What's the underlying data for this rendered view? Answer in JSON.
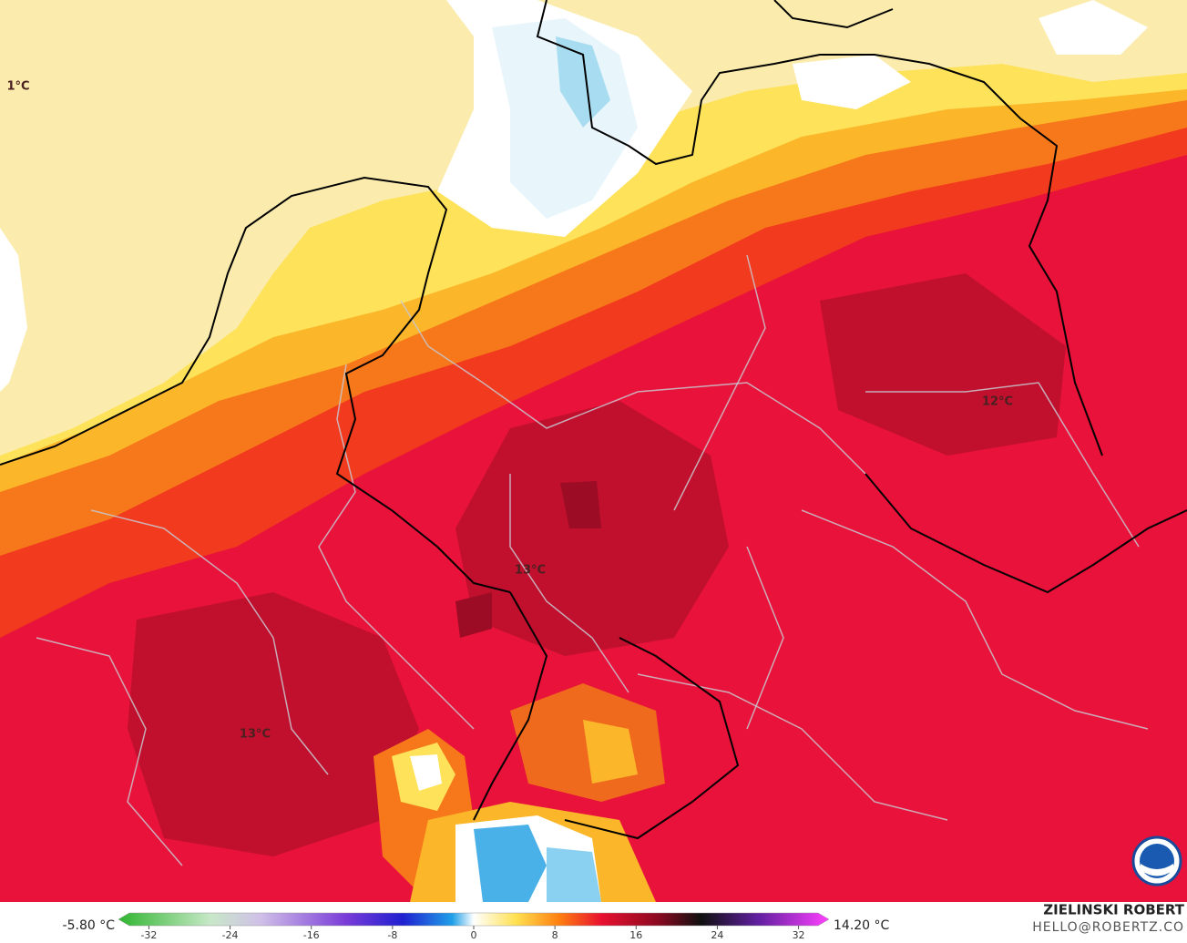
{
  "map": {
    "labels": [
      "1°C",
      "12°C",
      "13°C",
      "13°C"
    ],
    "colorbar": {
      "min_label": "-5.80 °C",
      "max_label": "14.20 °C",
      "range": [
        -35,
        35
      ],
      "ticks": [
        -32,
        -24,
        -16,
        -8,
        0,
        8,
        16,
        24,
        32
      ]
    },
    "credit": {
      "name": "ZIELINSKI ROBERT",
      "contact": "HELLO@ROBERTZ.CO"
    }
  }
}
